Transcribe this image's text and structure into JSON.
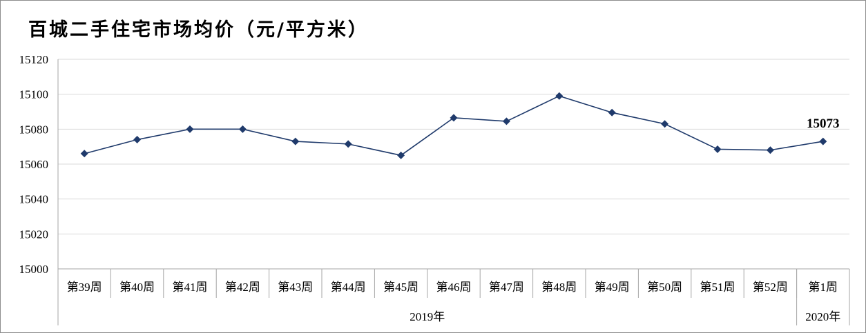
{
  "chart_data": {
    "type": "line",
    "title": "百城二手住宅市场均价（元/平方米）",
    "categories": [
      "第39周",
      "第40周",
      "第41周",
      "第42周",
      "第43周",
      "第44周",
      "第45周",
      "第46周",
      "第47周",
      "第48周",
      "第49周",
      "第50周",
      "第51周",
      "第52周",
      "第1周"
    ],
    "category_groups": [
      {
        "label": "2019年",
        "count": 14
      },
      {
        "label": "2020年",
        "count": 1
      }
    ],
    "series": [
      {
        "name": "百城二手住宅市场均价",
        "values": [
          15066,
          15074,
          15080,
          15080,
          15073,
          15071.5,
          15065,
          15086.5,
          15084.5,
          15099,
          15089.5,
          15083,
          15068.5,
          15068,
          15073
        ]
      }
    ],
    "data_labels": [
      {
        "index": 14,
        "text": "15073"
      }
    ],
    "ylim": [
      15000,
      15120
    ],
    "yticks": [
      15000,
      15020,
      15040,
      15060,
      15080,
      15100,
      15120
    ],
    "xlabel": "",
    "ylabel": "",
    "grid": true,
    "colors": {
      "line": "#1f3a6b",
      "marker": "#1f3a6b",
      "grid": "#d9d9d9",
      "axis": "#a6a6a6",
      "text": "#000000"
    }
  }
}
